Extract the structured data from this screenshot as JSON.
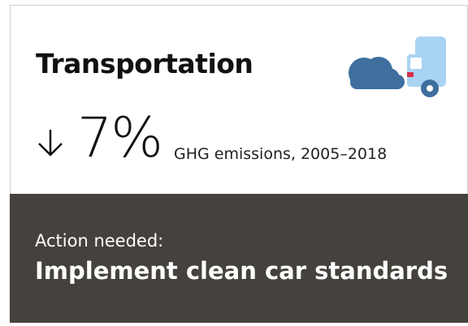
{
  "card": {
    "title": "Transportation",
    "stat": "7%",
    "stat_caption": "GHG emissions, 2005–2018",
    "action_label": "Action needed:",
    "action": "Implement clean car standards"
  }
}
